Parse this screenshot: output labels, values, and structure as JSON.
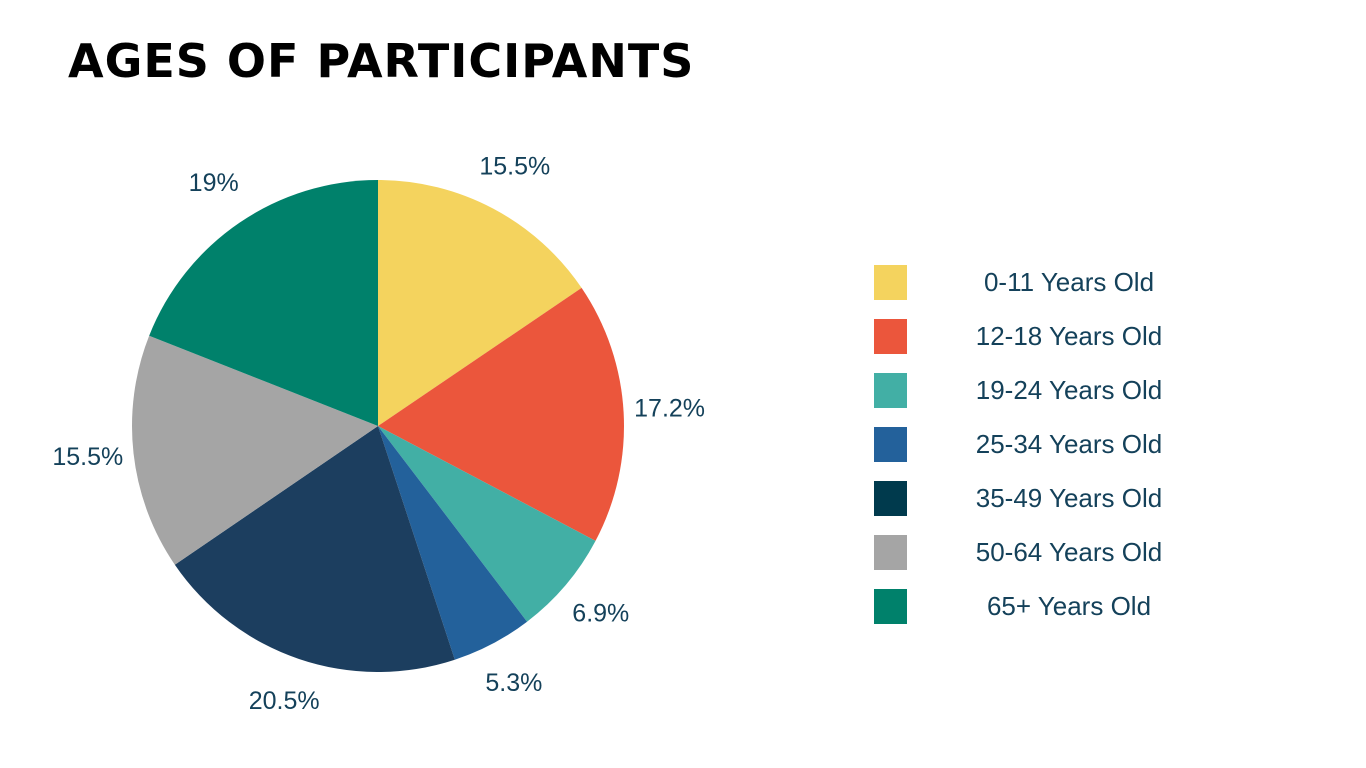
{
  "header": {
    "title": "AGES OF PARTICIPANTS"
  },
  "chart_data": {
    "type": "pie",
    "title": "AGES OF PARTICIPANTS",
    "legend_position": "right",
    "start_angle_deg": 0,
    "direction": "clockwise",
    "slices": [
      {
        "label": "0-11 Years Old",
        "value": 15.5,
        "value_label": "15.5%",
        "color": "#f4d35e"
      },
      {
        "label": "12-18 Years Old",
        "value": 17.2,
        "value_label": "17.2%",
        "color": "#eb563c"
      },
      {
        "label": "19-24 Years Old",
        "value": 6.9,
        "value_label": "6.9%",
        "color": "#42afa5"
      },
      {
        "label": "25-34 Years Old",
        "value": 5.3,
        "value_label": "5.3%",
        "color": "#23619b"
      },
      {
        "label": "35-49 Years Old",
        "value": 20.5,
        "value_label": "20.5%",
        "color": "#1c3e5f"
      },
      {
        "label": "50-64 Years Old",
        "value": 15.5,
        "value_label": "15.5%",
        "color": "#a5a5a5"
      },
      {
        "label": "65+ Years Old",
        "value": 19,
        "value_label": "19%",
        "color": "#00816b"
      }
    ],
    "legend_swatch_colors": [
      "#f4d35e",
      "#eb563c",
      "#42afa5",
      "#23619b",
      "#003a4d",
      "#a5a5a5",
      "#00816b"
    ]
  }
}
